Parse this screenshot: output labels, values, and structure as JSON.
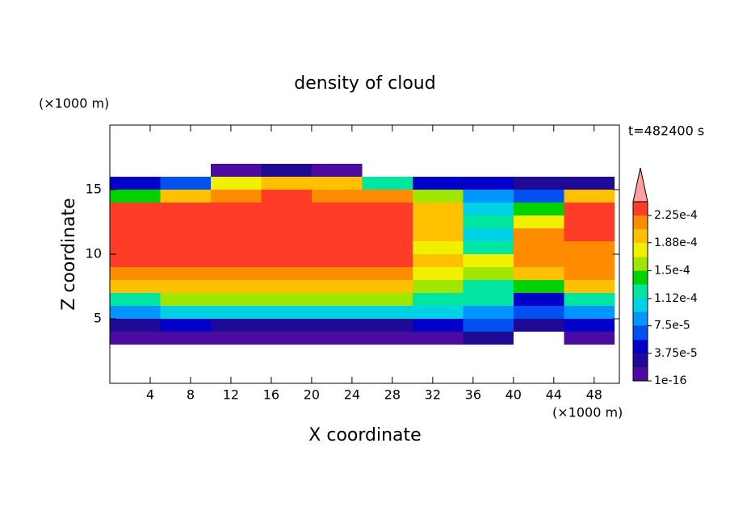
{
  "chart_data": {
    "type": "heatmap",
    "title": "density of cloud",
    "xlabel": "X coordinate",
    "ylabel": "Z coordinate",
    "xunit": "(×1000 m)",
    "yunit": "(×1000 m)",
    "annotation": "t=482400 s",
    "xlim": [
      0,
      50.5
    ],
    "ylim": [
      0,
      20
    ],
    "xticks": [
      4,
      8,
      12,
      16,
      20,
      24,
      28,
      32,
      36,
      40,
      44,
      48
    ],
    "yticks": [
      5,
      10,
      15
    ],
    "x_edges": [
      0,
      5,
      10,
      15,
      20,
      25,
      30,
      35,
      40,
      45,
      50
    ],
    "z_edges": [
      3,
      4,
      5,
      6,
      7,
      8,
      9,
      10,
      11,
      12,
      13,
      14,
      15,
      16,
      17
    ],
    "values": [
      [
        2e-06,
        2e-06,
        2e-06,
        2e-06,
        2e-06,
        2e-06,
        2e-06,
        3e-05,
        null,
        2e-06
      ],
      [
        3e-05,
        4e-05,
        3e-05,
        3e-05,
        3e-05,
        3e-05,
        4e-05,
        6e-05,
        3e-05,
        4e-05
      ],
      [
        9e-05,
        0.00011,
        0.00011,
        0.00011,
        0.00011,
        0.00011,
        0.0001,
        9e-05,
        6e-05,
        8e-05
      ],
      [
        0.00013,
        0.00015,
        0.00015,
        0.00015,
        0.00015,
        0.00015,
        0.00013,
        0.00012,
        5e-05,
        0.00012
      ],
      [
        0.00019,
        0.00019,
        0.00019,
        0.00019,
        0.00019,
        0.00019,
        0.00016,
        0.00013,
        0.00014,
        0.00019
      ],
      [
        0.00021,
        0.00021,
        0.000215,
        0.000215,
        0.000215,
        0.00021,
        0.00018,
        0.00016,
        0.0002,
        0.00021
      ],
      [
        0.00023,
        0.00023,
        0.00023,
        0.00023,
        0.00023,
        0.00023,
        0.00019,
        0.00017,
        0.00022,
        0.00022
      ],
      [
        0.00023,
        0.00023,
        0.00023,
        0.00023,
        0.00023,
        0.00023,
        0.00018,
        0.00012,
        0.00022,
        0.00022
      ],
      [
        0.00023,
        0.00023,
        0.00023,
        0.00023,
        0.00023,
        0.00023,
        0.00019,
        0.0001,
        0.00021,
        0.00023
      ],
      [
        0.00023,
        0.00023,
        0.00023,
        0.00023,
        0.00023,
        0.00023,
        0.0002,
        0.00012,
        0.00018,
        0.00023
      ],
      [
        0.000225,
        0.00023,
        0.00023,
        0.00023,
        0.00023,
        0.000225,
        0.0002,
        0.0001,
        0.00014,
        0.00023
      ],
      [
        0.00014,
        0.0002,
        0.00022,
        0.000225,
        0.00022,
        0.00021,
        0.00015,
        8e-05,
        6e-05,
        0.0002
      ],
      [
        4e-05,
        7e-05,
        0.00017,
        0.0002,
        0.00019,
        0.00012,
        5e-05,
        4e-05,
        2e-05,
        3e-05
      ],
      [
        null,
        null,
        2e-06,
        3e-05,
        2e-06,
        null,
        null,
        null,
        null,
        null
      ]
    ],
    "levels": [
      1e-16,
      1.875e-05,
      3.75e-05,
      5.625e-05,
      7.5e-05,
      9.375e-05,
      0.0001125,
      0.00013125,
      0.00015,
      0.00016875,
      0.0001875,
      0.00020625,
      0.000225,
      0.00024375
    ],
    "colors": [
      "#4b0aa0",
      "#1e0a96",
      "#0000c8",
      "#0050f0",
      "#0096ff",
      "#00d2e6",
      "#00e6a0",
      "#00d200",
      "#a0e600",
      "#f0f000",
      "#ffc000",
      "#ff8c00",
      "#ff3c28"
    ],
    "over_color": "#ffa0a0",
    "colorbar_ticks": [
      1e-16,
      {
        "value": 3.75e-05,
        "label": "3.75e-5"
      },
      {
        "value": 7.5e-05,
        "label": "7.5e-5"
      },
      {
        "value": 0.000112,
        "label": "1.12e-4"
      },
      {
        "value": 0.00015,
        "label": "1.5e-4"
      },
      {
        "value": 0.000188,
        "label": "1.88e-4"
      },
      {
        "value": 0.000225,
        "label": "2.25e-4"
      }
    ]
  }
}
